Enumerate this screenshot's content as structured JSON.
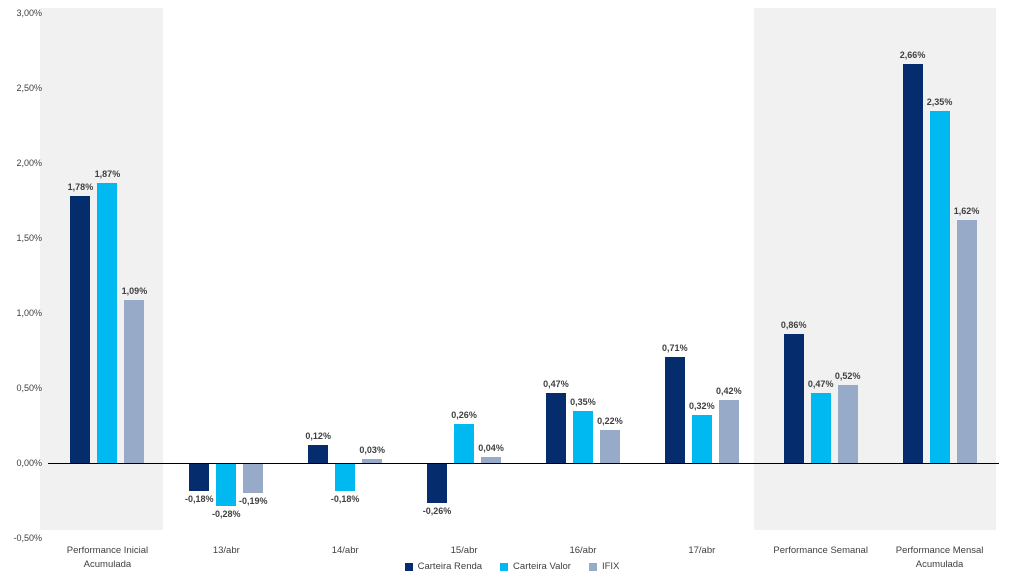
{
  "chart_data": {
    "type": "bar",
    "categories": [
      [
        "Performance Inicial",
        "Acumulada"
      ],
      [
        "13/abr"
      ],
      [
        "14/abr"
      ],
      [
        "15/abr"
      ],
      [
        "16/abr"
      ],
      [
        "17/abr"
      ],
      [
        "Performance Semanal"
      ],
      [
        "Performance Mensal",
        "Acumulada"
      ]
    ],
    "series": [
      {
        "name": "Carteira Renda",
        "color": "#052d6e",
        "values": [
          1.78,
          -0.18,
          0.12,
          -0.26,
          0.47,
          0.71,
          0.86,
          2.66
        ],
        "labels": [
          "1,78%",
          "-0,18%",
          "0,12%",
          "-0,26%",
          "0,47%",
          "0,71%",
          "0,86%",
          "2,66%"
        ]
      },
      {
        "name": "Carteira Valor",
        "color": "#00b9f0",
        "values": [
          1.87,
          -0.28,
          -0.18,
          0.26,
          0.35,
          0.32,
          0.47,
          2.35
        ],
        "labels": [
          "1,87%",
          "-0,28%",
          "-0,18%",
          "0,26%",
          "0,35%",
          "0,32%",
          "0,47%",
          "2,35%"
        ]
      },
      {
        "name": "IFIX",
        "color": "#97aac8",
        "values": [
          1.09,
          -0.19,
          0.03,
          0.04,
          0.22,
          0.42,
          0.52,
          1.62
        ],
        "labels": [
          "1,09%",
          "-0,19%",
          "0,03%",
          "0,04%",
          "0,22%",
          "0,42%",
          "0,52%",
          "1,62%"
        ]
      }
    ],
    "y_ticks": [
      {
        "label": "3,00%",
        "value": 3.0
      },
      {
        "label": "2,50%",
        "value": 2.5
      },
      {
        "label": "2,00%",
        "value": 2.0
      },
      {
        "label": "1,50%",
        "value": 1.5
      },
      {
        "label": "1,00%",
        "value": 1.0
      },
      {
        "label": "0,50%",
        "value": 0.5
      },
      {
        "label": "0,00%",
        "value": 0.0
      },
      {
        "label": "-0,50%",
        "value": -0.5
      }
    ],
    "ylim": [
      -0.5,
      3.0
    ],
    "title": "",
    "xlabel": "",
    "ylabel": "",
    "grid": false,
    "legend_position": "bottom-center",
    "highlighted_group_indices": [
      0,
      6,
      7
    ],
    "panel_color": "#f1f1f1",
    "axis_line_color": "#000000",
    "text_color": "#404040"
  }
}
